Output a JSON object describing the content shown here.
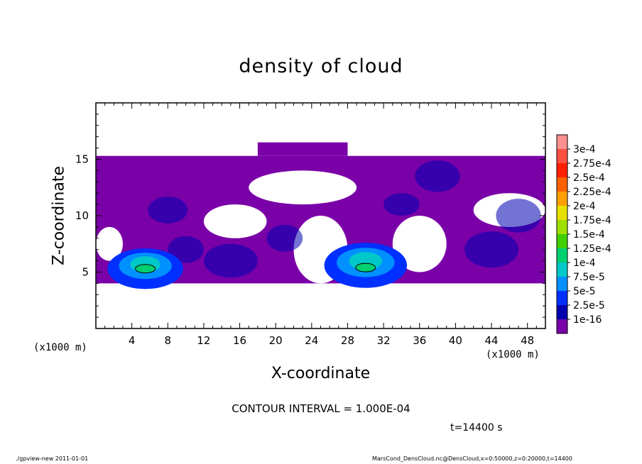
{
  "chart_data": {
    "type": "heatmap",
    "title": "density of cloud",
    "xlabel": "X-coordinate",
    "ylabel": "Z-coordinate",
    "x_unit_label": "(×1000 m)",
    "xlim": [
      0,
      50
    ],
    "ylim": [
      0,
      20
    ],
    "x_ticks": [
      4,
      8,
      12,
      16,
      20,
      24,
      28,
      32,
      36,
      40,
      44,
      48
    ],
    "y_ticks": [
      5,
      10,
      15
    ],
    "colorbar": {
      "labels": [
        "3e-4",
        "2.75e-4",
        "2.5e-4",
        "2.25e-4",
        "2e-4",
        "1.75e-4",
        "1.5e-4",
        "1.25e-4",
        "1e-4",
        "7.5e-5",
        "5e-5",
        "2.5e-5",
        "1e-16"
      ],
      "colors": [
        "#ff9090",
        "#ff5040",
        "#ff2000",
        "#ff6000",
        "#ffa000",
        "#e8e000",
        "#a0e000",
        "#40d000",
        "#00d070",
        "#00c8c8",
        "#0090ff",
        "#0030ff",
        "#0000b0",
        "#7a00a8"
      ]
    },
    "regions": {
      "background_layer": {
        "x": [
          0,
          50
        ],
        "z": [
          4,
          15.3
        ],
        "level": "1e-16"
      },
      "cap_layer": {
        "x": [
          18,
          28
        ],
        "z": [
          15.3,
          16.5
        ],
        "level": "1e-16"
      },
      "clear_gaps": [
        {
          "x": [
            17,
            29
          ],
          "z": [
            11,
            14
          ]
        },
        {
          "x": [
            12,
            19
          ],
          "z": [
            8,
            11
          ]
        },
        {
          "x": [
            22,
            28
          ],
          "z": [
            4,
            10
          ]
        },
        {
          "x": [
            33,
            39
          ],
          "z": [
            5,
            10
          ]
        },
        {
          "x": [
            42,
            50
          ],
          "z": [
            9,
            12
          ]
        },
        {
          "x": [
            0,
            3
          ],
          "z": [
            6,
            9
          ]
        }
      ],
      "maxima": [
        {
          "x": 5.5,
          "z": 5.3,
          "level": "1e-4"
        },
        {
          "x": 30,
          "z": 5.4,
          "level": "1.25e-4"
        }
      ]
    }
  },
  "labels": {
    "x_unit_left": "(x1000 m)",
    "x_unit_right": "(x1000 m)",
    "contour_interval": "CONTOUR INTERVAL = 1.000E-04",
    "timestamp": "t=14400 s",
    "footer_left": "./gpview-new  2011-01-01",
    "footer_right": "MarsCond_DensCloud.nc@DensCloud,x=0:50000,z=0:20000,t=14400"
  }
}
